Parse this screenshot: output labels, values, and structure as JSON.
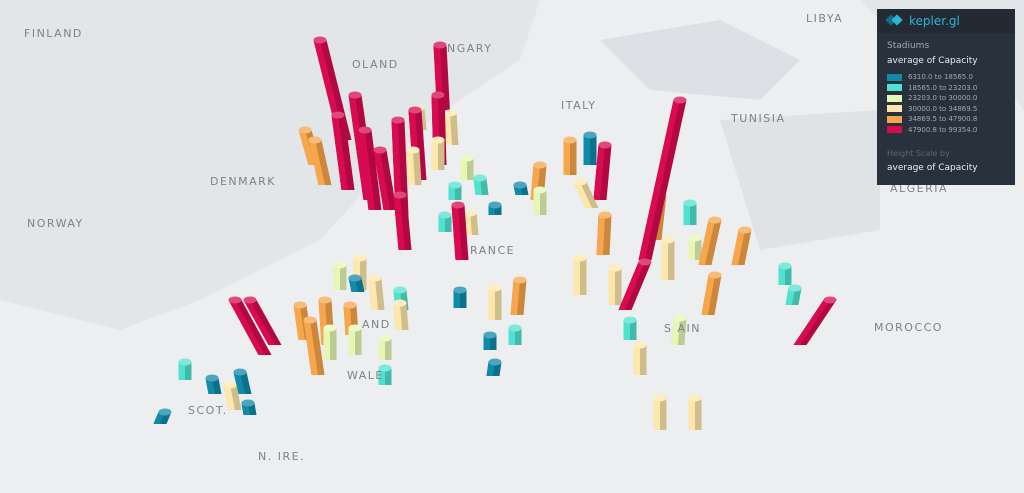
{
  "app": {
    "brand": "kepler.gl"
  },
  "legend": {
    "layer_name": "Stadiums",
    "color_field": "average of Capacity",
    "bins": [
      {
        "label": "6310.0 to 18565.0",
        "color": "#0f8aa8"
      },
      {
        "label": "18565.0 to 23203.0",
        "color": "#4fe3cf"
      },
      {
        "label": "23203.0 to 30000.0",
        "color": "#e6f7b5"
      },
      {
        "label": "30000.0 to 34869.5",
        "color": "#fde7aa"
      },
      {
        "label": "34869.5 to 47900.8",
        "color": "#f7a64b"
      },
      {
        "label": "47900.8 to 99354.0",
        "color": "#d80a50"
      }
    ],
    "height_label": "Height Scale by",
    "height_field": "average of Capacity"
  },
  "map_labels": {
    "finland": "FINLAND",
    "libya": "LIBYA",
    "poland": "OLAND",
    "hungary": "NGARY",
    "italy": "ITALY",
    "tunisia": "TUNISIA",
    "denmark": "DENMARK",
    "norway": "NORWAY",
    "france": "RANCE",
    "morocco": "MOROCCO",
    "spain": "S AIN",
    "england": "AND",
    "wales": "WALE",
    "scotland": "SCOT.",
    "n_ireland": "N. IRE.",
    "algeria": "ALGERIA"
  }
}
